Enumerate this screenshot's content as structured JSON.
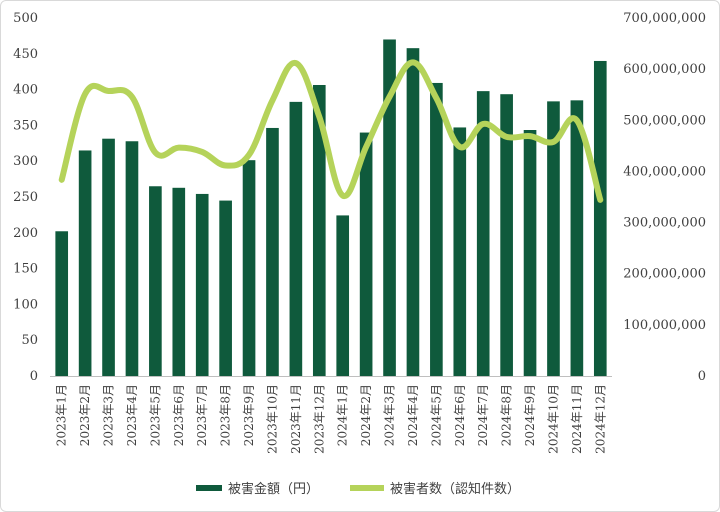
{
  "chart_data": {
    "type": "bar",
    "title": "",
    "categories": [
      "2023年1月",
      "2023年2月",
      "2023年3月",
      "2023年4月",
      "2023年5月",
      "2023年6月",
      "2023年7月",
      "2023年8月",
      "2023年9月",
      "2023年10月",
      "2023年11月",
      "2023年12月",
      "2024年1月",
      "2024年2月",
      "2024年3月",
      "2024年4月",
      "2024年5月",
      "2024年6月",
      "2024年7月",
      "2024年8月",
      "2024年9月",
      "2024年10月",
      "2024年11月",
      "2024年12月"
    ],
    "series": [
      {
        "name": "被害金額（円）",
        "chart_type": "bar",
        "axis": "right",
        "color": "#0f5a3c",
        "values": [
          283000000,
          441000000,
          464000000,
          459000000,
          371000000,
          368000000,
          356000000,
          343000000,
          422000000,
          485000000,
          536000000,
          569000000,
          314000000,
          476000000,
          658000000,
          641000000,
          573000000,
          486000000,
          557000000,
          551000000,
          481000000,
          537000000,
          539000000,
          616000000
        ]
      },
      {
        "name": "被害者数（認知件数）",
        "chart_type": "line",
        "axis": "left",
        "color": "#b5d35a",
        "values": [
          274,
          394,
          398,
          390,
          312,
          319,
          313,
          294,
          309,
          385,
          437,
          362,
          252,
          320,
          390,
          438,
          388,
          320,
          352,
          334,
          335,
          327,
          357,
          246
        ]
      }
    ],
    "y_left": {
      "ylim": [
        0,
        500
      ],
      "ticks": [
        "0",
        "50",
        "100",
        "150",
        "200",
        "250",
        "300",
        "350",
        "400",
        "450",
        "500"
      ]
    },
    "y_right": {
      "ylim": [
        0,
        700000000
      ],
      "ticks": [
        "0",
        "100,000,000",
        "200,000,000",
        "300,000,000",
        "400,000,000",
        "500,000,000",
        "600,000,000",
        "700,000,000"
      ]
    },
    "grid": false,
    "legend_position": "bottom"
  }
}
